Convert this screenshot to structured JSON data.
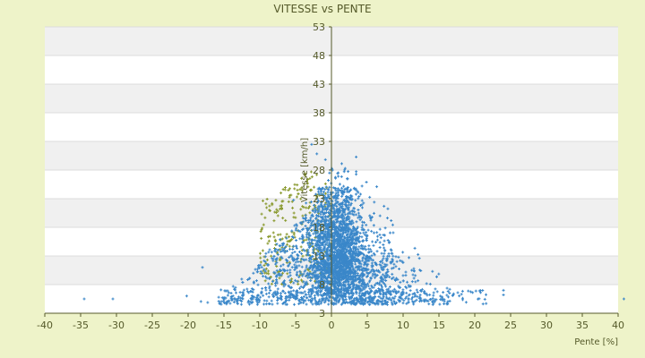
{
  "chart_data": {
    "type": "scatter",
    "title": "VITESSE vs PENTE",
    "xlabel": "Pente [%]",
    "ylabel": "Vitesse [km/h]",
    "xlim": [
      -40,
      40
    ],
    "ylim": [
      3,
      53
    ],
    "x_ticks": [
      -40,
      -35,
      -30,
      -25,
      -20,
      -15,
      -10,
      -5,
      0,
      5,
      10,
      15,
      20,
      25,
      30,
      35,
      40
    ],
    "y_ticks": [
      3,
      8,
      13,
      18,
      23,
      28,
      33,
      38,
      43,
      48,
      53
    ],
    "grid": "horizontal bands",
    "legend": "none",
    "series": [
      {
        "color": "#3a87c9",
        "marker": "+",
        "summary": "dense cloud, most points between 5 and 25 km/h, peak density near 0 to 3 percent slope"
      },
      {
        "color": "#8a9a30",
        "marker": "+",
        "summary": "sparse points between -10 and 0 percent slope, up to about 28 km/h"
      }
    ],
    "outliers": [
      {
        "x": -34.5,
        "y": 5.5
      },
      {
        "x": -30.5,
        "y": 5.5
      },
      {
        "x": -20.2,
        "y": 6.0
      },
      {
        "x": -18.0,
        "y": 11.0
      },
      {
        "x": 24.0,
        "y": 7.0
      },
      {
        "x": 40.8,
        "y": 5.5
      }
    ]
  },
  "colors": {
    "background": "#eef3c9",
    "plot_band_light": "#ffffff",
    "plot_band_dark": "#f0f0f0",
    "text": "#555a2a",
    "axis": "#555a2a"
  }
}
